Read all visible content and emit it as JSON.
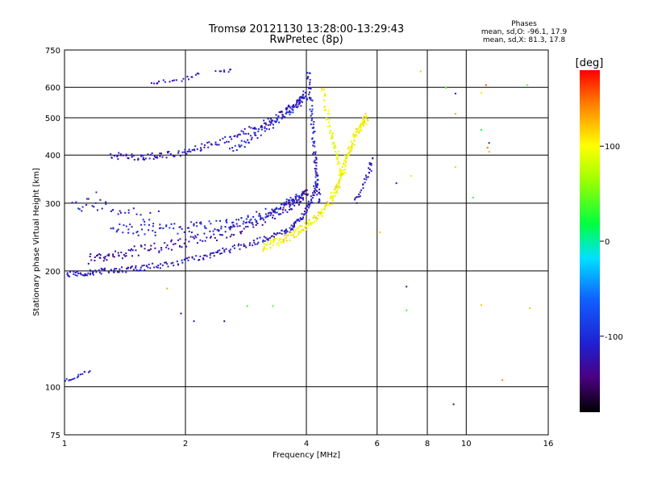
{
  "chart_data": {
    "type": "scatter",
    "title": "Tromsø 20121130 13:28:00-13:29:43",
    "subtitle": "RwPretec (8p)",
    "xlabel": "Frequency [MHz]",
    "ylabel": "Stationary phase Virtual Height [km]",
    "x_scale": "log",
    "y_scale": "log",
    "xlim": [
      1,
      16
    ],
    "ylim": [
      75,
      750
    ],
    "x_ticks": [
      {
        "value": 1,
        "label": "1"
      },
      {
        "value": 2,
        "label": "2"
      },
      {
        "value": 4,
        "label": "4"
      },
      {
        "value": 6,
        "label": "6"
      },
      {
        "value": 8,
        "label": "8"
      },
      {
        "value": 10,
        "label": "10"
      },
      {
        "value": 16,
        "label": "16"
      }
    ],
    "y_ticks": [
      {
        "value": 75,
        "label": "75"
      },
      {
        "value": 100,
        "label": "100"
      },
      {
        "value": 200,
        "label": "200"
      },
      {
        "value": 300,
        "label": "300"
      },
      {
        "value": 400,
        "label": "400"
      },
      {
        "value": 500,
        "label": "500"
      },
      {
        "value": 600,
        "label": "600"
      },
      {
        "value": 750,
        "label": "750"
      }
    ],
    "x_gridlines": [
      2,
      4,
      6,
      8,
      10
    ],
    "y_gridlines": [
      100,
      200,
      300,
      400,
      500,
      600
    ],
    "grid": true,
    "colorbar": {
      "label": "[deg]",
      "range": [
        -180,
        180
      ],
      "ticks": [
        {
          "value": 100,
          "label": "100"
        },
        {
          "value": 0,
          "label": "0"
        },
        {
          "value": -100,
          "label": "-100"
        }
      ]
    },
    "info": {
      "heading": "Phases",
      "line_o": "mean, sd,O: -96.1, 17.9",
      "line_x": "mean, sd,X:  81.3, 17.8"
    },
    "traces": [
      {
        "points": [
          [
            1.0,
            195
          ],
          [
            1.1,
            197
          ],
          [
            1.2,
            199
          ],
          [
            1.35,
            201
          ],
          [
            1.5,
            203
          ],
          [
            1.7,
            206
          ],
          [
            2.0,
            212
          ],
          [
            2.3,
            220
          ],
          [
            2.6,
            228
          ],
          [
            3.0,
            238
          ],
          [
            3.3,
            246
          ],
          [
            3.6,
            256
          ],
          [
            3.8,
            268
          ],
          [
            4.0,
            285
          ],
          [
            4.15,
            310
          ],
          [
            4.25,
            345
          ]
        ],
        "phase": -115,
        "count": 260,
        "spread": 0.018
      },
      {
        "points": [
          [
            1.15,
            215
          ],
          [
            1.3,
            220
          ],
          [
            1.5,
            225
          ],
          [
            1.8,
            232
          ],
          [
            2.1,
            240
          ],
          [
            2.5,
            250
          ],
          [
            2.9,
            262
          ],
          [
            3.3,
            278
          ],
          [
            3.6,
            292
          ],
          [
            3.85,
            308
          ],
          [
            4.0,
            325
          ]
        ],
        "phase": -128,
        "count": 190,
        "spread": 0.03
      },
      {
        "points": [
          [
            1.3,
            260
          ],
          [
            1.6,
            255
          ],
          [
            2.0,
            258
          ],
          [
            2.4,
            262
          ],
          [
            2.8,
            270
          ],
          [
            3.2,
            282
          ],
          [
            3.6,
            296
          ],
          [
            3.9,
            312
          ]
        ],
        "phase": -105,
        "count": 150,
        "spread": 0.035
      },
      {
        "points": [
          [
            1.05,
            290
          ],
          [
            1.2,
            300
          ],
          [
            1.4,
            285
          ],
          [
            1.7,
            275
          ]
        ],
        "phase": -108,
        "count": 35,
        "spread": 0.04
      },
      {
        "points": [
          [
            1.3,
            400
          ],
          [
            1.5,
            395
          ],
          [
            1.7,
            398
          ],
          [
            2.0,
            408
          ],
          [
            2.3,
            425
          ],
          [
            2.7,
            450
          ],
          [
            3.1,
            480
          ],
          [
            3.5,
            515
          ],
          [
            3.8,
            545
          ],
          [
            3.95,
            575
          ]
        ],
        "phase": -120,
        "count": 170,
        "spread": 0.02
      },
      {
        "points": [
          [
            2.6,
            415
          ],
          [
            2.9,
            440
          ],
          [
            3.2,
            470
          ],
          [
            3.5,
            505
          ],
          [
            3.8,
            540
          ],
          [
            4.0,
            570
          ]
        ],
        "phase": -108,
        "count": 80,
        "spread": 0.025
      },
      {
        "points": [
          [
            1.65,
            612
          ],
          [
            1.75,
            620
          ],
          [
            1.9,
            625
          ],
          [
            2.05,
            635
          ],
          [
            2.15,
            648
          ]
        ],
        "phase": -115,
        "count": 20,
        "spread": 0.012
      },
      {
        "points": [
          [
            2.4,
            658
          ],
          [
            2.6,
            665
          ]
        ],
        "phase": -112,
        "count": 8,
        "spread": 0.008
      },
      {
        "points": [
          [
            4.05,
            660
          ],
          [
            4.1,
            560
          ],
          [
            4.15,
            470
          ],
          [
            4.2,
            400
          ],
          [
            4.25,
            350
          ],
          [
            4.3,
            300
          ]
        ],
        "phase": -112,
        "count": 80,
        "spread": 0.02
      },
      {
        "points": [
          [
            3.1,
            230
          ],
          [
            3.4,
            238
          ],
          [
            3.7,
            248
          ],
          [
            4.0,
            262
          ],
          [
            4.3,
            280
          ],
          [
            4.6,
            305
          ],
          [
            4.8,
            335
          ],
          [
            4.95,
            370
          ],
          [
            5.1,
            410
          ],
          [
            5.3,
            450
          ],
          [
            5.5,
            480
          ],
          [
            5.65,
            500
          ]
        ],
        "phase": 100,
        "count": 260,
        "spread": 0.025
      },
      {
        "points": [
          [
            4.4,
            600
          ],
          [
            4.5,
            520
          ],
          [
            4.6,
            460
          ],
          [
            4.7,
            420
          ],
          [
            4.8,
            390
          ],
          [
            4.9,
            360
          ]
        ],
        "phase": 95,
        "count": 60,
        "spread": 0.025
      },
      {
        "points": [
          [
            5.3,
            300
          ],
          [
            5.5,
            330
          ],
          [
            5.7,
            360
          ],
          [
            5.85,
            390
          ]
        ],
        "phase": -118,
        "count": 30,
        "spread": 0.02
      },
      {
        "points": [
          [
            1.0,
            104
          ],
          [
            1.05,
            105
          ],
          [
            1.1,
            108
          ],
          [
            1.15,
            110
          ]
        ],
        "phase": -112,
        "count": 16,
        "spread": 0.006
      }
    ],
    "sparse_points": [
      {
        "x": 1.2,
        "y": 320,
        "phase": -95
      },
      {
        "x": 1.8,
        "y": 180,
        "phase": 130
      },
      {
        "x": 1.95,
        "y": 155,
        "phase": -140
      },
      {
        "x": 2.1,
        "y": 148,
        "phase": -120
      },
      {
        "x": 2.5,
        "y": 148,
        "phase": -150
      },
      {
        "x": 2.85,
        "y": 162,
        "phase": 30
      },
      {
        "x": 3.3,
        "y": 162,
        "phase": 40
      },
      {
        "x": 6.1,
        "y": 252,
        "phase": 120
      },
      {
        "x": 6.7,
        "y": 338,
        "phase": -120
      },
      {
        "x": 7.1,
        "y": 182,
        "phase": -130
      },
      {
        "x": 7.1,
        "y": 158,
        "phase": 30
      },
      {
        "x": 7.3,
        "y": 353,
        "phase": 110
      },
      {
        "x": 7.7,
        "y": 660,
        "phase": 120
      },
      {
        "x": 8.9,
        "y": 598,
        "phase": 40
      },
      {
        "x": 9.3,
        "y": 90,
        "phase": -130
      },
      {
        "x": 9.4,
        "y": 578,
        "phase": -130
      },
      {
        "x": 9.4,
        "y": 512,
        "phase": 130
      },
      {
        "x": 9.4,
        "y": 372,
        "phase": 120
      },
      {
        "x": 10.4,
        "y": 310,
        "phase": 30
      },
      {
        "x": 10.9,
        "y": 465,
        "phase": 20
      },
      {
        "x": 10.9,
        "y": 163,
        "phase": 120
      },
      {
        "x": 11.2,
        "y": 608,
        "phase": 160
      },
      {
        "x": 11.4,
        "y": 430,
        "phase": -120
      },
      {
        "x": 11.4,
        "y": 408,
        "phase": 130
      },
      {
        "x": 12.3,
        "y": 104,
        "phase": 140
      },
      {
        "x": 14.2,
        "y": 608,
        "phase": 40
      },
      {
        "x": 14.4,
        "y": 160,
        "phase": 120
      },
      {
        "x": 10.9,
        "y": 580,
        "phase": 110
      },
      {
        "x": 11.3,
        "y": 418,
        "phase": 150
      }
    ]
  }
}
